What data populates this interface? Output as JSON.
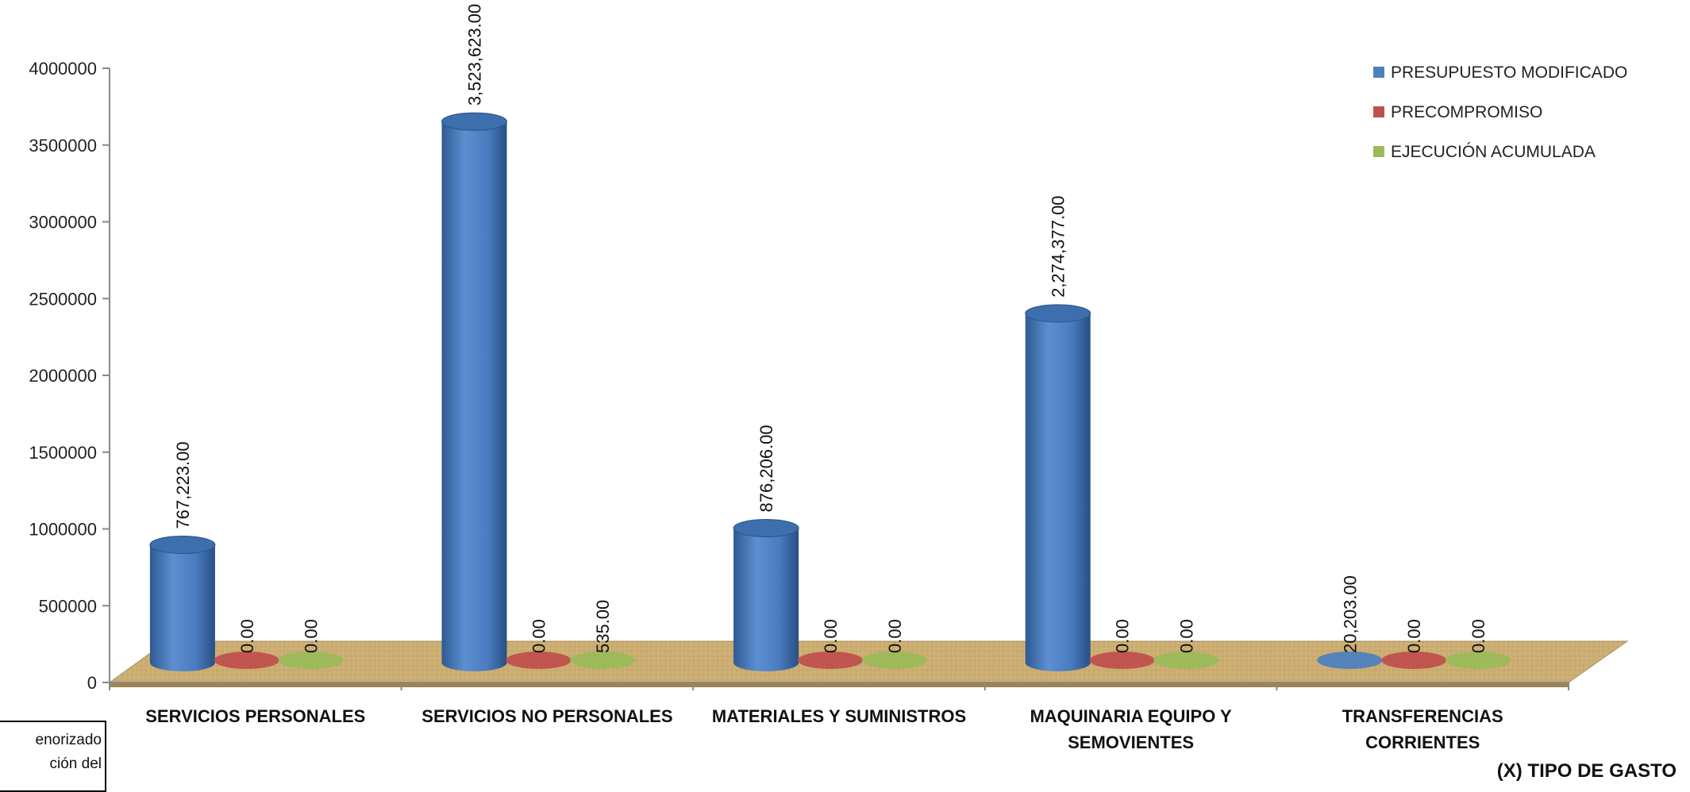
{
  "chart_data": {
    "type": "bar",
    "style": "3d-cylinder",
    "categories": [
      [
        "SERVICIOS PERSONALES"
      ],
      [
        "SERVICIOS NO PERSONALES"
      ],
      [
        "MATERIALES Y SUMINISTROS"
      ],
      [
        "MAQUINARIA EQUIPO Y",
        "SEMOVIENTES"
      ],
      [
        "TRANSFERENCIAS",
        "CORRIENTES"
      ]
    ],
    "series": [
      {
        "name": "PRESUPUESTO MODIFICADO",
        "color": "#4F81BD",
        "values": [
          767223,
          3523623,
          876206,
          2274377,
          20203
        ],
        "labels": [
          "767,223.00",
          "3,523,623.00",
          "876,206.00",
          "2,274,377.00",
          "20,203.00"
        ]
      },
      {
        "name": "PRECOMPROMISO",
        "color": "#C0504D",
        "values": [
          0,
          0,
          0,
          0,
          0
        ],
        "labels": [
          "0.00",
          "0.00",
          "0.00",
          "0.00",
          "0.00"
        ]
      },
      {
        "name": "EJECUCIÓN ACUMULADA",
        "color": "#9BBB59",
        "values": [
          0,
          535,
          0,
          0,
          0
        ],
        "labels": [
          "0.00",
          "535.00",
          "0.00",
          "0.00",
          "0.00"
        ]
      }
    ],
    "yticks": [
      "0",
      "500000",
      "1000000",
      "1500000",
      "2000000",
      "2500000",
      "3000000",
      "3500000",
      "4000000"
    ],
    "ylim": [
      0,
      4000000
    ],
    "xlabel": "(X) TIPO DE GASTO",
    "ylabel": "",
    "legend": "top-right",
    "floor_color": "#C8A96E"
  },
  "note": {
    "lines": [
      "enorizado",
      "ción del"
    ]
  }
}
